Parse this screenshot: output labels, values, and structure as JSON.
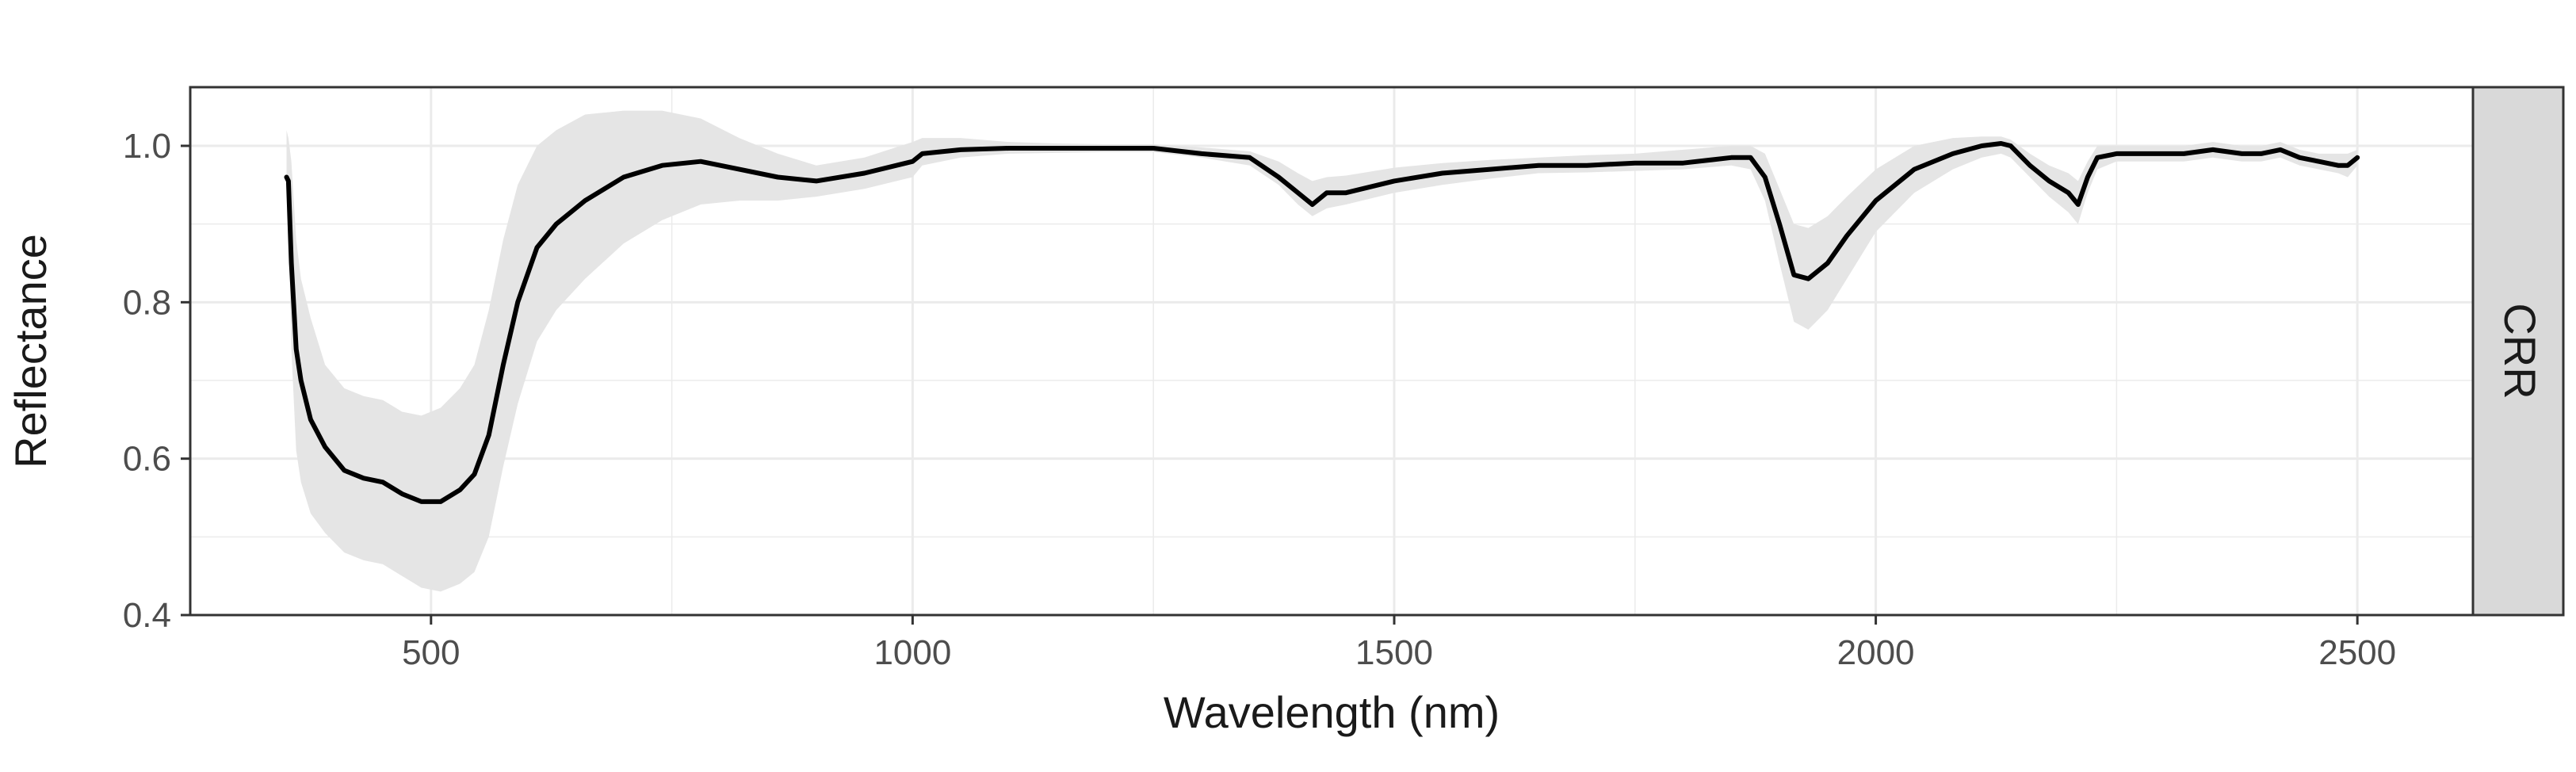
{
  "chart_data": {
    "type": "line",
    "facet_label": "CRR",
    "xlabel": "Wavelength (nm)",
    "ylabel": "Reflectance",
    "xlim": [
      250,
      2620
    ],
    "ylim": [
      0.4,
      1.075
    ],
    "x_ticks": [
      500,
      1000,
      1500,
      2000,
      2500
    ],
    "x_tick_labels": [
      "500",
      "1000",
      "1500",
      "2000",
      "2500"
    ],
    "y_ticks": [
      0.4,
      0.6,
      0.8,
      1.0
    ],
    "y_tick_labels": [
      "0.4",
      "0.6",
      "0.8",
      "1.0"
    ],
    "grid": true,
    "colors": {
      "line": "#000000",
      "ribbon": "#e5e5e5",
      "grid": "#ebebeb",
      "panel_border": "#333333",
      "strip_fill": "#d9d9d9"
    },
    "series": [
      {
        "x": [
          350,
          352,
          355,
          360,
          365,
          375,
          390,
          410,
          430,
          450,
          470,
          490,
          510,
          530,
          545,
          560,
          575,
          590,
          610,
          630,
          660,
          700,
          740,
          780,
          820,
          860,
          900,
          950,
          1000,
          1010,
          1050,
          1100,
          1150,
          1200,
          1250,
          1300,
          1350,
          1380,
          1400,
          1415,
          1430,
          1450,
          1500,
          1550,
          1600,
          1650,
          1700,
          1750,
          1800,
          1850,
          1870,
          1885,
          1900,
          1915,
          1930,
          1950,
          1970,
          2000,
          2040,
          2080,
          2110,
          2130,
          2140,
          2160,
          2180,
          2200,
          2210,
          2220,
          2230,
          2250,
          2280,
          2300,
          2320,
          2350,
          2380,
          2400,
          2420,
          2440,
          2460,
          2480,
          2490,
          2500
        ],
        "y": [
          0.96,
          0.955,
          0.85,
          0.74,
          0.7,
          0.65,
          0.615,
          0.585,
          0.575,
          0.57,
          0.555,
          0.545,
          0.545,
          0.56,
          0.58,
          0.63,
          0.72,
          0.8,
          0.87,
          0.9,
          0.93,
          0.96,
          0.975,
          0.98,
          0.97,
          0.96,
          0.955,
          0.965,
          0.98,
          0.99,
          0.995,
          0.997,
          0.997,
          0.997,
          0.997,
          0.99,
          0.985,
          0.96,
          0.94,
          0.925,
          0.94,
          0.94,
          0.955,
          0.965,
          0.97,
          0.975,
          0.975,
          0.978,
          0.978,
          0.985,
          0.985,
          0.96,
          0.9,
          0.835,
          0.83,
          0.85,
          0.885,
          0.93,
          0.97,
          0.99,
          1.0,
          1.003,
          1.0,
          0.975,
          0.955,
          0.94,
          0.925,
          0.96,
          0.985,
          0.99,
          0.99,
          0.99,
          0.99,
          0.995,
          0.99,
          0.99,
          0.995,
          0.985,
          0.98,
          0.975,
          0.975,
          0.985
        ]
      }
    ],
    "ribbon": {
      "x": [
        350,
        352,
        355,
        360,
        365,
        375,
        390,
        410,
        430,
        450,
        470,
        490,
        510,
        530,
        545,
        560,
        575,
        590,
        610,
        630,
        660,
        700,
        740,
        780,
        820,
        860,
        900,
        950,
        1000,
        1010,
        1050,
        1100,
        1150,
        1200,
        1250,
        1300,
        1350,
        1380,
        1400,
        1415,
        1430,
        1450,
        1500,
        1550,
        1600,
        1650,
        1700,
        1750,
        1800,
        1850,
        1870,
        1885,
        1900,
        1915,
        1930,
        1950,
        1970,
        2000,
        2040,
        2080,
        2110,
        2130,
        2140,
        2160,
        2180,
        2200,
        2210,
        2220,
        2230,
        2250,
        2280,
        2300,
        2320,
        2350,
        2380,
        2400,
        2420,
        2440,
        2460,
        2480,
        2490,
        2500
      ],
      "upper": [
        1.02,
        1.01,
        0.98,
        0.88,
        0.83,
        0.78,
        0.72,
        0.69,
        0.68,
        0.675,
        0.66,
        0.655,
        0.665,
        0.69,
        0.72,
        0.79,
        0.88,
        0.95,
        1.0,
        1.02,
        1.04,
        1.045,
        1.045,
        1.035,
        1.01,
        0.99,
        0.975,
        0.985,
        1.005,
        1.01,
        1.01,
        1.005,
        1.003,
        1.002,
        1.002,
        0.998,
        0.993,
        0.98,
        0.965,
        0.955,
        0.96,
        0.962,
        0.972,
        0.978,
        0.982,
        0.985,
        0.988,
        0.99,
        0.995,
        1.0,
        1.0,
        0.99,
        0.945,
        0.9,
        0.895,
        0.91,
        0.935,
        0.97,
        1.0,
        1.01,
        1.012,
        1.012,
        1.008,
        0.99,
        0.975,
        0.965,
        0.955,
        0.98,
        1.0,
        1.0,
        1.0,
        1.0,
        1.0,
        1.005,
        1.0,
        1.0,
        1.005,
        0.995,
        0.99,
        0.99,
        0.99,
        0.995
      ],
      "lower": [
        0.95,
        0.9,
        0.74,
        0.61,
        0.57,
        0.53,
        0.505,
        0.48,
        0.47,
        0.465,
        0.45,
        0.435,
        0.43,
        0.44,
        0.455,
        0.5,
        0.59,
        0.67,
        0.75,
        0.79,
        0.83,
        0.875,
        0.905,
        0.925,
        0.93,
        0.93,
        0.935,
        0.945,
        0.96,
        0.975,
        0.985,
        0.99,
        0.991,
        0.992,
        0.992,
        0.985,
        0.975,
        0.95,
        0.925,
        0.91,
        0.92,
        0.925,
        0.94,
        0.95,
        0.958,
        0.965,
        0.966,
        0.968,
        0.97,
        0.975,
        0.97,
        0.93,
        0.85,
        0.775,
        0.765,
        0.79,
        0.83,
        0.89,
        0.94,
        0.97,
        0.985,
        0.99,
        0.985,
        0.96,
        0.935,
        0.915,
        0.9,
        0.94,
        0.97,
        0.98,
        0.98,
        0.98,
        0.98,
        0.985,
        0.98,
        0.98,
        0.985,
        0.975,
        0.97,
        0.965,
        0.96,
        0.975
      ]
    }
  }
}
